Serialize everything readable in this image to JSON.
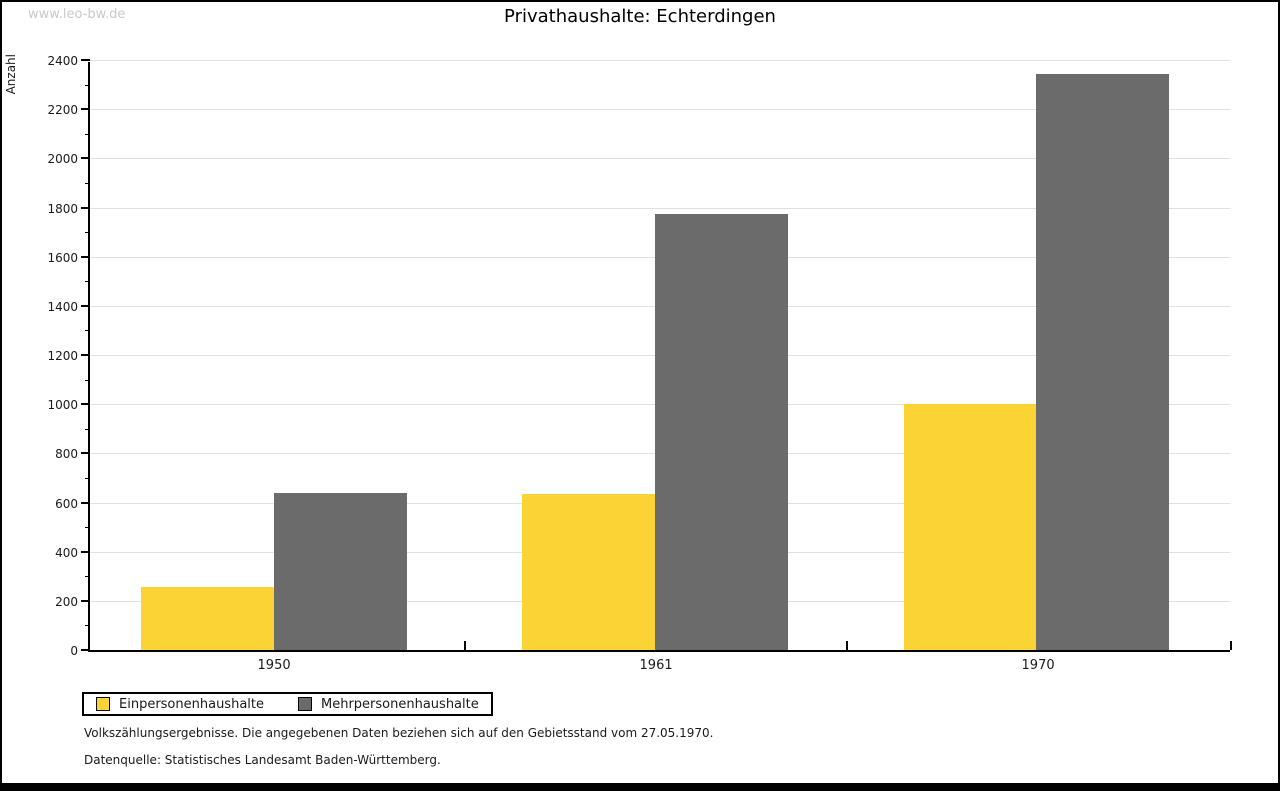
{
  "watermark": "www.leo-bw.de",
  "title": "Privathaushalte: Echterdingen",
  "chart_data": {
    "type": "bar",
    "title": "Privathaushalte: Echterdingen",
    "categories": [
      "1950",
      "1961",
      "1970"
    ],
    "series": [
      {
        "name": "Einpersonenhaushalte",
        "color": "#FCD335",
        "values": [
          255,
          635,
          1000
        ]
      },
      {
        "name": "Mehrpersonenhaushalte",
        "color": "#6B6B6B",
        "values": [
          640,
          1775,
          2345
        ]
      }
    ],
    "xlabel": "",
    "ylabel": "Anzahl",
    "ylim": [
      0,
      2400
    ],
    "ytick_step": 200,
    "yminor_step": 100,
    "grid": "horizontal-major",
    "legend_position": "bottom-left",
    "colors": {
      "grid": "#e0e0e0",
      "axis": "#000000",
      "watermark": "#c9c9c9"
    }
  },
  "footer": {
    "line1": "Volkszählungsergebnisse. Die angegebenen Daten beziehen sich auf den Gebietsstand vom 27.05.1970.",
    "line2": "Datenquelle: Statistisches Landesamt Baden-Württemberg."
  }
}
